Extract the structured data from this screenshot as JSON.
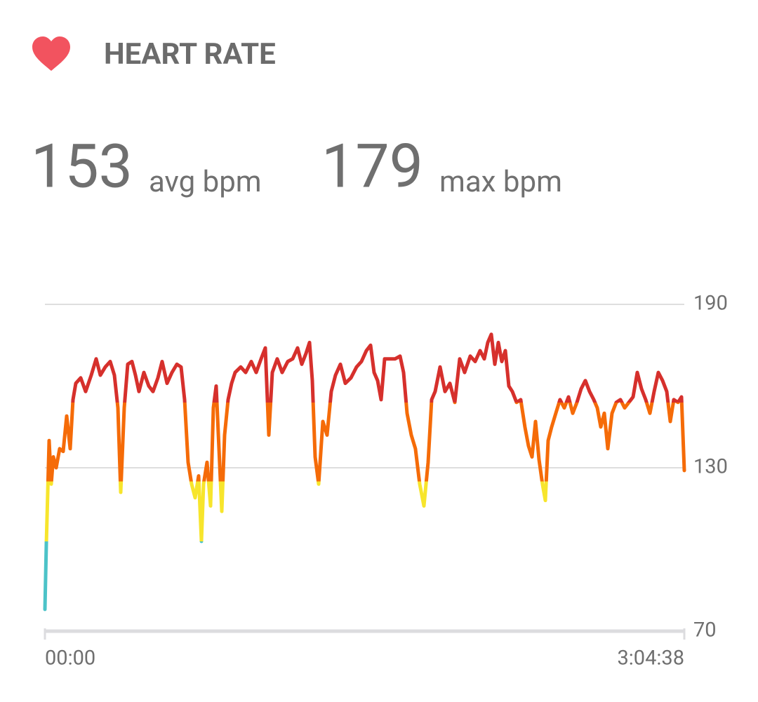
{
  "header": {
    "title": "HEART RATE"
  },
  "stats": [
    {
      "value": 153,
      "unit": "avg bpm"
    },
    {
      "value": 179,
      "unit": "max bpm"
    }
  ],
  "chart_data": {
    "type": "line",
    "xlim": [
      0,
      11078
    ],
    "xticks": [
      {
        "value": 0,
        "label": "00:00"
      },
      {
        "value": 11078,
        "label": "3:04:38"
      }
    ],
    "ylim": [
      70,
      190
    ],
    "yticks": [
      70,
      130,
      190
    ],
    "grid": true,
    "color_zones": [
      {
        "from": 70,
        "color": "#4cc3c8"
      },
      {
        "from": 103,
        "color": "#f7e52c"
      },
      {
        "from": 125,
        "color": "#f56b08"
      },
      {
        "from": 154,
        "color": "#d6302c"
      }
    ],
    "x": [
      0,
      24,
      49,
      73,
      109,
      146,
      195,
      255,
      316,
      377,
      438,
      486,
      535,
      620,
      705,
      803,
      888,
      961,
      1046,
      1131,
      1204,
      1265,
      1313,
      1374,
      1435,
      1508,
      1569,
      1629,
      1715,
      1800,
      1873,
      1958,
      2031,
      2116,
      2201,
      2286,
      2359,
      2420,
      2481,
      2541,
      2602,
      2663,
      2712,
      2748,
      2809,
      2870,
      2918,
      2967,
      3016,
      3064,
      3113,
      3174,
      3235,
      3295,
      3393,
      3478,
      3575,
      3660,
      3745,
      3818,
      3879,
      3940,
      4025,
      4110,
      4207,
      4292,
      4378,
      4451,
      4524,
      4584,
      4633,
      4682,
      4742,
      4815,
      4888,
      4961,
      5034,
      5119,
      5204,
      5302,
      5399,
      5484,
      5569,
      5642,
      5703,
      5764,
      5825,
      5885,
      5971,
      6068,
      6153,
      6214,
      6275,
      6348,
      6420,
      6493,
      6566,
      6639,
      6700,
      6761,
      6846,
      6931,
      7016,
      7101,
      7187,
      7272,
      7369,
      7454,
      7539,
      7612,
      7673,
      7734,
      7795,
      7855,
      7916,
      7977,
      8038,
      8099,
      8172,
      8244,
      8317,
      8378,
      8439,
      8500,
      8561,
      8621,
      8670,
      8719,
      8780,
      8852,
      8925,
      8998,
      9071,
      9144,
      9217,
      9290,
      9363,
      9436,
      9509,
      9570,
      9631,
      9692,
      9752,
      9825,
      9898,
      9971,
      10044,
      10117,
      10190,
      10263,
      10336,
      10409,
      10482,
      10555,
      10628,
      10701,
      10774,
      10835,
      10895,
      10968,
      11029,
      11078
    ],
    "values": [
      78,
      102,
      121,
      140,
      124,
      134,
      130,
      137,
      136,
      149,
      137,
      155,
      161,
      163,
      158,
      164,
      170,
      164,
      167,
      169,
      164,
      152,
      121,
      152,
      168,
      169,
      164,
      158,
      165,
      160,
      158,
      163,
      169,
      161,
      165,
      168,
      167,
      155,
      132,
      124,
      119,
      127,
      103,
      124,
      132,
      116,
      152,
      160,
      137,
      114,
      142,
      155,
      161,
      165,
      167,
      165,
      169,
      165,
      170,
      174,
      142,
      165,
      170,
      165,
      169,
      170,
      174,
      168,
      172,
      176,
      162,
      134,
      124,
      147,
      142,
      158,
      164,
      168,
      161,
      163,
      167,
      169,
      173,
      175,
      165,
      162,
      155,
      170,
      170,
      170,
      171,
      165,
      150,
      142,
      137,
      124,
      116,
      132,
      155,
      158,
      167,
      158,
      161,
      154,
      170,
      165,
      171,
      169,
      173,
      170,
      176,
      179,
      168,
      176,
      169,
      173,
      160,
      158,
      154,
      155,
      145,
      138,
      134,
      147,
      133,
      124,
      118,
      140,
      145,
      150,
      155,
      152,
      156,
      150,
      154,
      159,
      162,
      158,
      155,
      152,
      145,
      150,
      137,
      150,
      154,
      155,
      152,
      154,
      156,
      165,
      159,
      155,
      150,
      158,
      165,
      162,
      158,
      147,
      155,
      154,
      156,
      129
    ]
  }
}
